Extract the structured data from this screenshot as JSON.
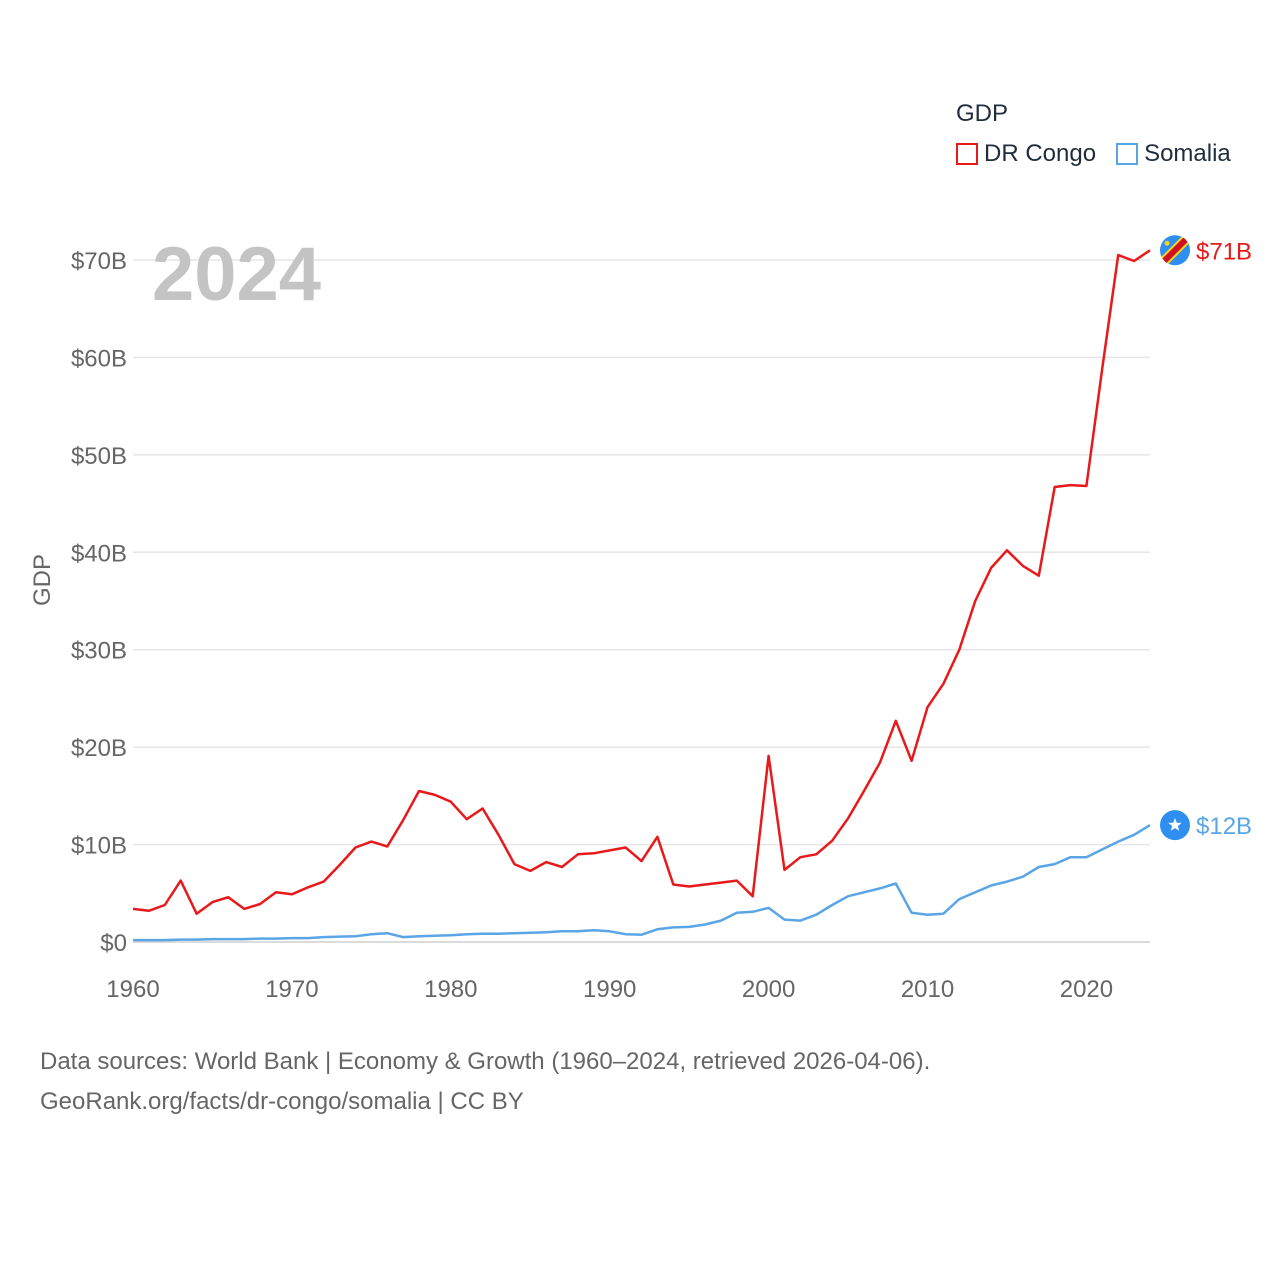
{
  "legend": {
    "title": "GDP"
  },
  "source": {
    "line1": "Data sources: World Bank | Economy & Growth (1960–2024, retrieved 2026-04-06).",
    "line2": "GeoRank.org/facts/dr-congo/somalia | CC BY"
  },
  "chart_data": {
    "type": "line",
    "title": "GDP",
    "year_label": "2024",
    "ylabel": "GDP",
    "xlabel": "",
    "xlim": [
      1960,
      2024
    ],
    "ylim": [
      0,
      70
    ],
    "y_unit": "billion USD",
    "y_ticks": [
      {
        "value": 0,
        "label": "$0"
      },
      {
        "value": 10,
        "label": "$10B"
      },
      {
        "value": 20,
        "label": "$20B"
      },
      {
        "value": 30,
        "label": "$30B"
      },
      {
        "value": 40,
        "label": "$40B"
      },
      {
        "value": 50,
        "label": "$50B"
      },
      {
        "value": 60,
        "label": "$60B"
      },
      {
        "value": 70,
        "label": "$70B"
      }
    ],
    "x_ticks": [
      1960,
      1970,
      1980,
      1990,
      2000,
      2010,
      2020
    ],
    "grid": true,
    "legend_position": "top-right",
    "series": [
      {
        "name": "DR Congo",
        "color": "#e8191b",
        "end_label": "$71B",
        "marker_icon": "dr-congo-flag-icon",
        "x_start": 1960,
        "values": [
          3.4,
          3.2,
          3.8,
          6.3,
          2.9,
          4.1,
          4.6,
          3.4,
          3.9,
          5.1,
          4.9,
          5.6,
          6.2,
          7.9,
          9.7,
          10.3,
          9.8,
          12.5,
          15.5,
          15.1,
          14.4,
          12.6,
          13.7,
          11.0,
          8.0,
          7.3,
          8.2,
          7.7,
          9.0,
          9.1,
          9.4,
          9.7,
          8.3,
          10.8,
          5.9,
          5.7,
          5.9,
          6.1,
          6.3,
          4.7,
          19.1,
          7.4,
          8.7,
          9.0,
          10.4,
          12.7,
          15.5,
          18.4,
          22.7,
          18.6,
          24.1,
          26.5,
          30.0,
          35.0,
          38.4,
          40.2,
          38.6,
          37.6,
          46.7,
          46.9,
          46.8,
          58.9,
          70.5,
          69.9,
          71.0
        ]
      },
      {
        "name": "Somalia",
        "color": "#5aa5e6",
        "end_label": "$12B",
        "marker_icon": "somalia-flag-icon",
        "x_start": 1960,
        "values": [
          0.2,
          0.2,
          0.2,
          0.25,
          0.25,
          0.3,
          0.3,
          0.3,
          0.35,
          0.35,
          0.4,
          0.4,
          0.5,
          0.55,
          0.6,
          0.8,
          0.9,
          0.5,
          0.6,
          0.65,
          0.7,
          0.8,
          0.85,
          0.85,
          0.9,
          0.95,
          1.0,
          1.1,
          1.1,
          1.2,
          1.1,
          0.8,
          0.75,
          1.3,
          1.5,
          1.55,
          1.8,
          2.2,
          3.0,
          3.1,
          3.5,
          2.3,
          2.2,
          2.8,
          3.8,
          4.7,
          5.1,
          5.5,
          6.0,
          3.0,
          2.8,
          2.9,
          4.4,
          5.1,
          5.8,
          6.2,
          6.7,
          7.7,
          8.0,
          8.7,
          8.7,
          9.5,
          10.3,
          11.0,
          12.0
        ]
      }
    ]
  }
}
